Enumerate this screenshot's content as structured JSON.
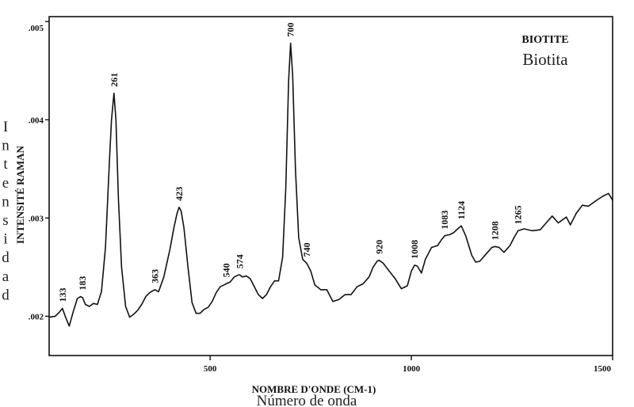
{
  "chart_data": {
    "type": "line",
    "title": "BIOTITE",
    "subtitle": "Biotita",
    "xlabel": "NOMBRE D'ONDE (CM-1)",
    "xlabel_es": "Número de onda",
    "ylabel": "INTENSITÉ RAMAN",
    "ylabel_es": "Intensidad",
    "xlim": [
      100,
      1500
    ],
    "ylim": [
      0.0016,
      0.00505
    ],
    "x_ticks": [
      500,
      1000,
      1500
    ],
    "y_ticks": [
      ".002",
      ".003",
      ".004",
      ".005"
    ],
    "y_tick_values": [
      0.002,
      0.003,
      0.004,
      0.005
    ],
    "grid": false,
    "color": "#111111",
    "peak_labels": [
      {
        "x": 133,
        "y": 0.00208,
        "label": "133"
      },
      {
        "x": 183,
        "y": 0.0022,
        "label": "183"
      },
      {
        "x": 261,
        "y": 0.00427,
        "label": "261"
      },
      {
        "x": 363,
        "y": 0.00227,
        "label": "363"
      },
      {
        "x": 423,
        "y": 0.00311,
        "label": "423"
      },
      {
        "x": 540,
        "y": 0.00233,
        "label": "540"
      },
      {
        "x": 574,
        "y": 0.00242,
        "label": "574"
      },
      {
        "x": 700,
        "y": 0.00478,
        "label": "700"
      },
      {
        "x": 740,
        "y": 0.00254,
        "label": "740"
      },
      {
        "x": 920,
        "y": 0.00257,
        "label": "920"
      },
      {
        "x": 1008,
        "y": 0.00252,
        "label": "1008"
      },
      {
        "x": 1083,
        "y": 0.00282,
        "label": "1083"
      },
      {
        "x": 1124,
        "y": 0.00292,
        "label": "1124"
      },
      {
        "x": 1208,
        "y": 0.00271,
        "label": "1208"
      },
      {
        "x": 1265,
        "y": 0.00287,
        "label": "1265"
      }
    ],
    "series": [
      {
        "x": [
          100,
          115,
          125,
          133,
          140,
          150,
          160,
          170,
          178,
          183,
          190,
          200,
          210,
          220,
          230,
          240,
          250,
          255,
          261,
          266,
          272,
          280,
          290,
          300,
          310,
          320,
          330,
          340,
          350,
          358,
          363,
          372,
          385,
          400,
          410,
          418,
          423,
          428,
          435,
          445,
          455,
          465,
          475,
          485,
          495,
          505,
          515,
          525,
          535,
          540,
          550,
          560,
          570,
          574,
          580,
          590,
          600,
          610,
          620,
          630,
          640,
          650,
          660,
          670,
          680,
          688,
          695,
          700,
          705,
          712,
          720,
          730,
          740,
          750,
          760,
          775,
          790,
          805,
          820,
          835,
          850,
          865,
          880,
          895,
          905,
          915,
          920,
          930,
          945,
          960,
          975,
          990,
          1000,
          1008,
          1015,
          1025,
          1035,
          1050,
          1065,
          1075,
          1083,
          1095,
          1105,
          1115,
          1124,
          1135,
          1150,
          1160,
          1170,
          1185,
          1200,
          1208,
          1218,
          1230,
          1245,
          1255,
          1265,
          1280,
          1300,
          1320,
          1335,
          1350,
          1365,
          1375,
          1385,
          1395,
          1410,
          1425,
          1440,
          1460,
          1475,
          1490,
          1500
        ],
        "y": [
          0.00199,
          0.002,
          0.00204,
          0.00208,
          0.002,
          0.0019,
          0.00205,
          0.00218,
          0.0022,
          0.00219,
          0.00212,
          0.0021,
          0.00213,
          0.00212,
          0.00225,
          0.0027,
          0.0036,
          0.004,
          0.00427,
          0.004,
          0.0032,
          0.0025,
          0.0021,
          0.00199,
          0.00202,
          0.00206,
          0.00212,
          0.0022,
          0.00224,
          0.00226,
          0.00227,
          0.00225,
          0.0024,
          0.00268,
          0.0029,
          0.00305,
          0.00311,
          0.00307,
          0.0029,
          0.0025,
          0.00214,
          0.00203,
          0.00203,
          0.00207,
          0.00209,
          0.00215,
          0.00224,
          0.0023,
          0.00232,
          0.00233,
          0.00235,
          0.0024,
          0.00242,
          0.00242,
          0.0024,
          0.00241,
          0.00238,
          0.0023,
          0.00222,
          0.00218,
          0.00222,
          0.0023,
          0.00236,
          0.00236,
          0.0026,
          0.0033,
          0.0044,
          0.00478,
          0.00445,
          0.0035,
          0.0028,
          0.00258,
          0.00254,
          0.00246,
          0.00232,
          0.00227,
          0.00227,
          0.00215,
          0.00217,
          0.00222,
          0.00222,
          0.0023,
          0.00233,
          0.0024,
          0.0025,
          0.00256,
          0.00257,
          0.00254,
          0.00246,
          0.00238,
          0.00228,
          0.00231,
          0.00246,
          0.00252,
          0.00251,
          0.00244,
          0.00258,
          0.0027,
          0.00272,
          0.00278,
          0.00282,
          0.00283,
          0.00285,
          0.00289,
          0.00292,
          0.00282,
          0.00262,
          0.00255,
          0.00256,
          0.00263,
          0.0027,
          0.00271,
          0.0027,
          0.00265,
          0.00272,
          0.0028,
          0.00287,
          0.00289,
          0.00287,
          0.00288,
          0.00295,
          0.00302,
          0.00295,
          0.00298,
          0.00301,
          0.00293,
          0.00305,
          0.00313,
          0.00312,
          0.00318,
          0.00322,
          0.00325,
          0.00318
        ]
      }
    ]
  }
}
